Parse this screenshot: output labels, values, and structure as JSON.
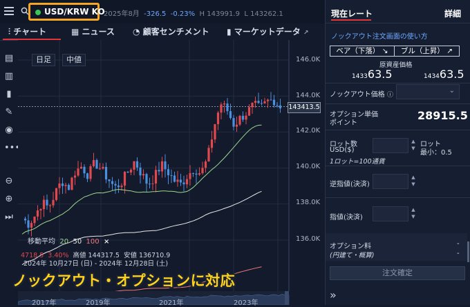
{
  "topbar": {
    "pair_name": "USD/KRW KO",
    "period": "2025年8月",
    "change": "-326.5",
    "change_pct": "-0.23%",
    "high": "H 143991.9",
    "low": "L 143262.1"
  },
  "tabs": [
    {
      "label": "チャート"
    },
    {
      "label": "ニュース"
    },
    {
      "label": "顧客センチメント"
    },
    {
      "label": "マーケットデータ"
    }
  ],
  "chart_controls": {
    "period_btn": "日足",
    "type_btn": "中値"
  },
  "price_tag": "143413.5",
  "moving_avg": {
    "label": "移動平均",
    "p1": "20",
    "p2": "50",
    "p3": "100",
    "close": "×"
  },
  "info": {
    "change": "4718.5",
    "change_pct": "3.40%",
    "high": "高値 144317.5",
    "low": "安値 136710.9",
    "range": "2024年 10月27日 (日) - 2024年 12月28日 (土)"
  },
  "banner": "ノックアウト・オプションに対応",
  "chart_data": {
    "type": "candlestick",
    "y_tick_labels": [
      "146.0K",
      "144.0K",
      "142.0K",
      "140.0K",
      "138.0K",
      "136.0K"
    ],
    "x_tick_labels": [
      "2017年",
      "2019年",
      "2021年",
      "2023年"
    ],
    "ylim": [
      135000,
      147000
    ],
    "last_price": 143413.5,
    "series": [
      {
        "name": "20",
        "color": "#9fd88f"
      },
      {
        "name": "50",
        "color": "#e8e8e8"
      },
      {
        "name": "100",
        "color": "#f07a7a"
      }
    ]
  },
  "panel": {
    "tab_current": "現在レート",
    "tab_detail": "詳細",
    "howto_link": "ノックアウト注文画面の使い方",
    "pair_down": "ベア（下落）",
    "pair_up": "ブル（上昇）",
    "underlying_label": "原資産価格",
    "bid_prefix": "1433",
    "bid_main": "63.5",
    "ask_prefix": "1434",
    "ask_main": "63.5",
    "ko_price_label": "ノックアウト価格",
    "option_price_label": "オプション単価",
    "option_price_label2": "ポイント",
    "option_price_value": "28915.5",
    "lot_label": "ロット数",
    "lot_unit": "USD($)",
    "lot_right1": "ロット",
    "lot_right2": "最小：0.5",
    "lot_note": "1ロット=100通貨",
    "stop_label": "逆指値(決済)",
    "limit_label": "指値(決済)",
    "fee_label": "オプション料",
    "fee_sub": "(円建て・概算)",
    "fee_value1": "-",
    "fee_value2": "-",
    "order_button": "注文確定"
  }
}
